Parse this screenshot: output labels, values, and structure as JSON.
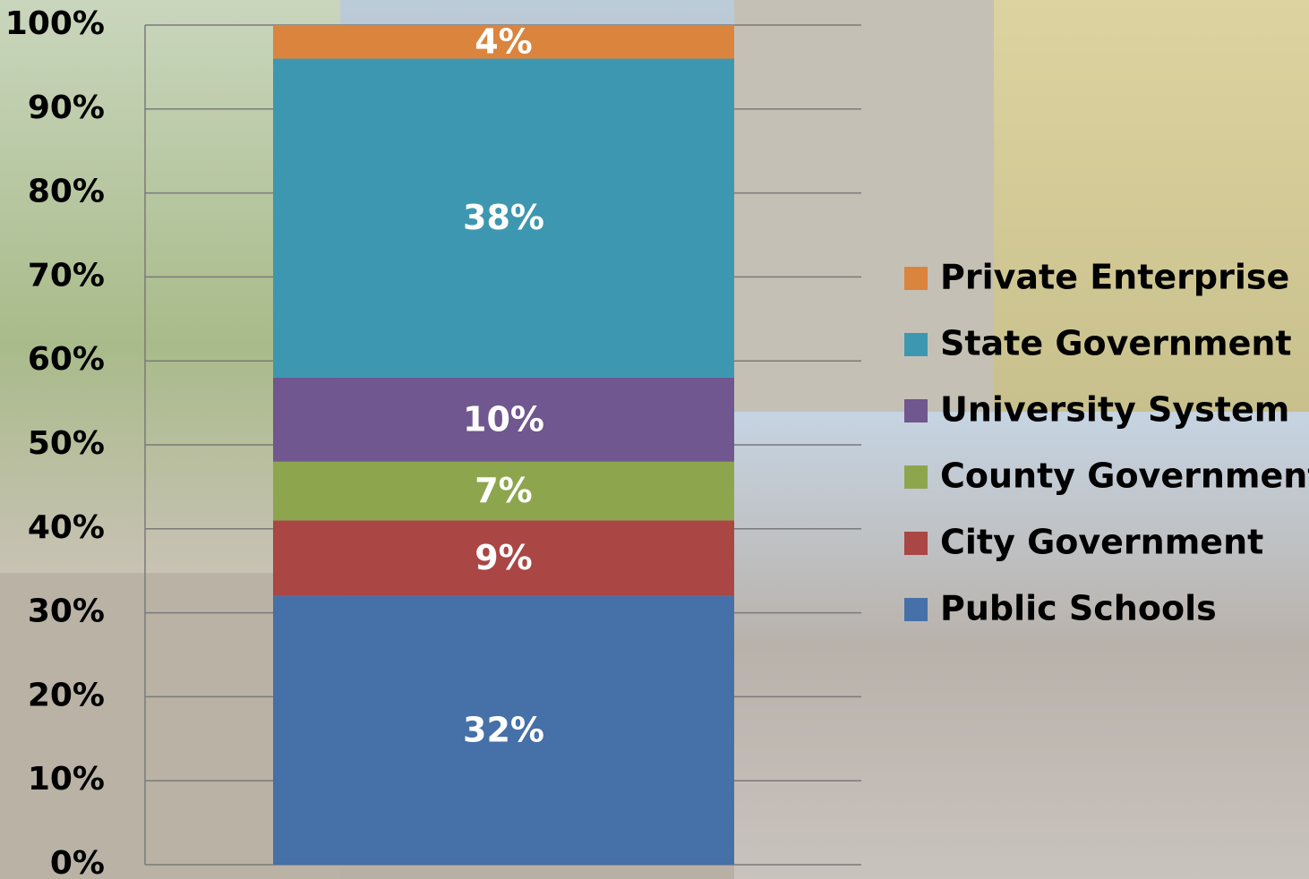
{
  "chart_data": {
    "type": "stacked-bar",
    "series": [
      {
        "name": "Public Schools",
        "color": "#4570a8",
        "values": [
          32
        ],
        "value_labels": [
          "32%"
        ]
      },
      {
        "name": "City Government",
        "color": "#aa4644",
        "values": [
          9
        ],
        "value_labels": [
          "9%"
        ]
      },
      {
        "name": "County Government",
        "color": "#8da64e",
        "values": [
          7
        ],
        "value_labels": [
          "7%"
        ]
      },
      {
        "name": "University System",
        "color": "#70578f",
        "values": [
          10
        ],
        "value_labels": [
          "10%"
        ]
      },
      {
        "name": "State Government",
        "color": "#3e97b0",
        "values": [
          38
        ],
        "value_labels": [
          "38%"
        ]
      },
      {
        "name": "Private Enterprise",
        "color": "#db843d",
        "values": [
          4
        ],
        "value_labels": [
          "4%"
        ]
      }
    ],
    "ylim": [
      0,
      100
    ],
    "yticks": [
      {
        "value": 0,
        "label": "0%"
      },
      {
        "value": 10,
        "label": "10%"
      },
      {
        "value": 20,
        "label": "20%"
      },
      {
        "value": 30,
        "label": "30%"
      },
      {
        "value": 40,
        "label": "40%"
      },
      {
        "value": 50,
        "label": "50%"
      },
      {
        "value": 60,
        "label": "60%"
      },
      {
        "value": 70,
        "label": "70%"
      },
      {
        "value": 80,
        "label": "80%"
      },
      {
        "value": 90,
        "label": "90%"
      },
      {
        "value": 100,
        "label": "100%"
      }
    ],
    "grid": true,
    "legend": "right"
  }
}
